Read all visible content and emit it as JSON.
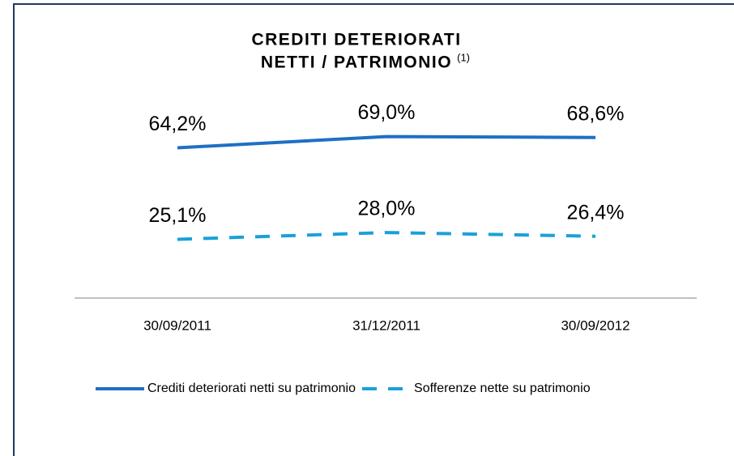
{
  "chart_data": {
    "type": "line",
    "title": [
      "CREDITI DETERIORATI",
      "NETTI / PATRIMONIO"
    ],
    "title_note": "(1)",
    "categories": [
      "30/09/2011",
      "31/12/2011",
      "30/09/2012"
    ],
    "series": [
      {
        "name": "Crediti deteriorati netti su patrimonio",
        "color": "#1f6fc5",
        "style": "solid",
        "values": [
          64.2,
          69.0,
          68.6
        ],
        "value_labels": [
          "64,2%",
          "69,0%",
          "68,6%"
        ]
      },
      {
        "name": "Sofferenze nette su patrimonio",
        "color": "#1aa1d8",
        "style": "dashed",
        "values": [
          25.1,
          28.0,
          26.4
        ],
        "value_labels": [
          "25,1%",
          "28,0%",
          "26,4%"
        ]
      }
    ],
    "ylim": [
      0,
      100
    ],
    "legend": "bottom"
  }
}
